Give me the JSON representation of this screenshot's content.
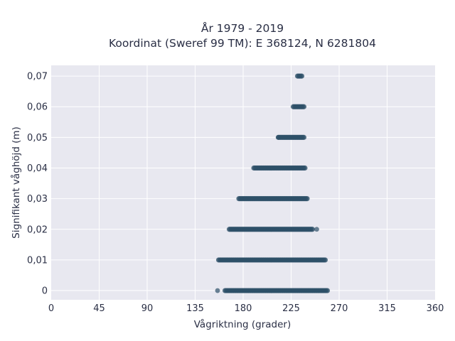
{
  "chart_data": {
    "type": "scatter",
    "title_line1": "År 1979 - 2019",
    "title_line2": "Koordinat (Sweref 99 TM): E 368124, N 6281804",
    "xlabel": "Vågriktning (grader)",
    "ylabel": "Signifikant våghöjd (m)",
    "xlim": [
      0,
      360
    ],
    "ylim": [
      -0.003,
      0.0735
    ],
    "x_ticks": [
      0,
      45,
      90,
      135,
      180,
      225,
      270,
      315,
      360
    ],
    "x_tick_labels": [
      "0",
      "45",
      "90",
      "135",
      "180",
      "225",
      "270",
      "315",
      "360"
    ],
    "y_ticks": [
      0,
      0.01,
      0.02,
      0.03,
      0.04,
      0.05,
      0.06,
      0.07
    ],
    "y_tick_labels": [
      "0",
      "0,01",
      "0,02",
      "0,03",
      "0,04",
      "0,05",
      "0,06",
      "0,07"
    ],
    "grid": true,
    "marker_color": "#2e5068",
    "background_color": "#e8e8f0",
    "series": [
      {
        "bands": [
          {
            "y": 0.0,
            "x_min": 163,
            "x_max": 259
          },
          {
            "y": 0.01,
            "x_min": 157,
            "x_max": 257
          },
          {
            "y": 0.02,
            "x_min": 167,
            "x_max": 245
          },
          {
            "y": 0.03,
            "x_min": 176,
            "x_max": 240
          },
          {
            "y": 0.04,
            "x_min": 190,
            "x_max": 238
          },
          {
            "y": 0.05,
            "x_min": 213,
            "x_max": 237
          },
          {
            "y": 0.06,
            "x_min": 227,
            "x_max": 237
          },
          {
            "y": 0.07,
            "x_min": 231,
            "x_max": 235
          }
        ],
        "outliers": [
          {
            "x": 156,
            "y": 0.0
          },
          {
            "x": 249,
            "y": 0.02
          },
          {
            "x": 213,
            "y": 0.05
          }
        ]
      }
    ]
  }
}
